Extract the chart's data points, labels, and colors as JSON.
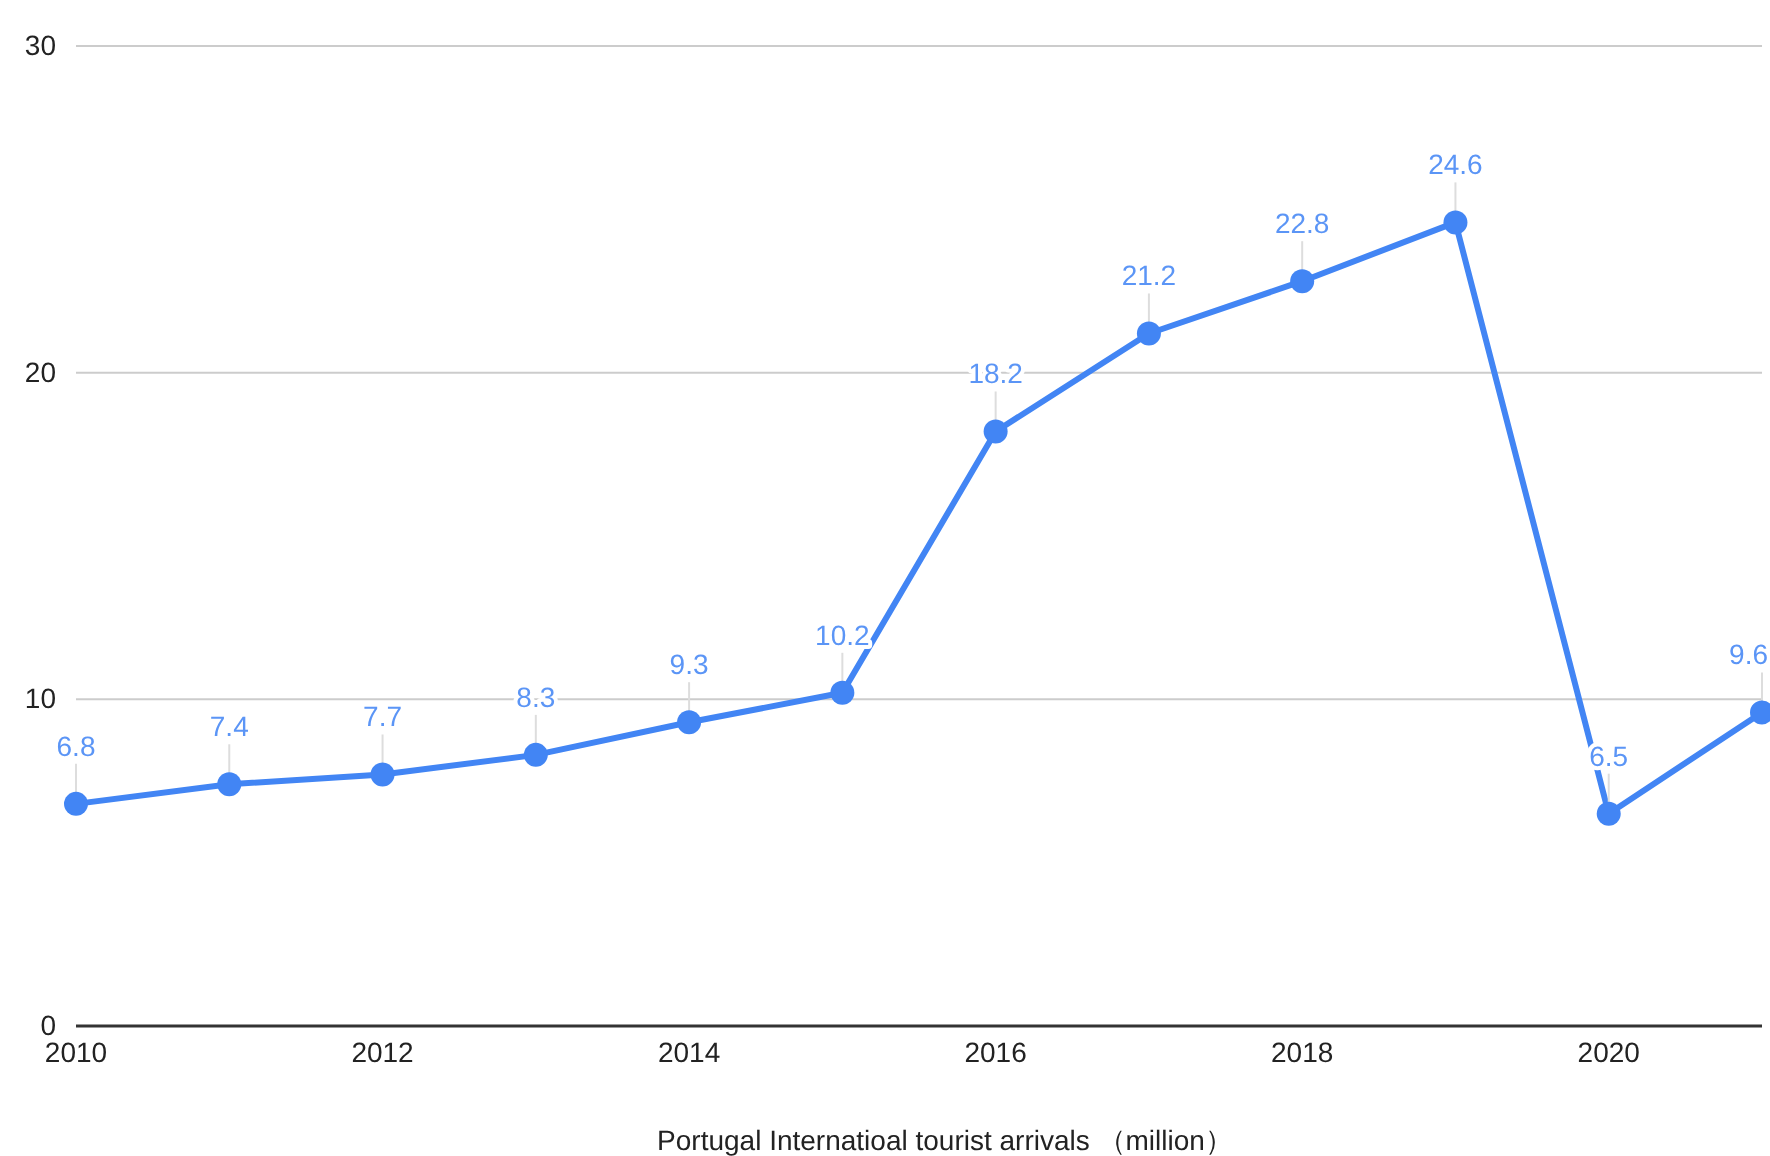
{
  "chart_data": {
    "type": "line",
    "xlabel": "Portugal Internatioal tourist arrivals （million）",
    "x": [
      2010,
      2011,
      2012,
      2013,
      2014,
      2015,
      2016,
      2017,
      2018,
      2019,
      2020,
      2021
    ],
    "series": [
      {
        "color": "#4285f4",
        "values": [
          6.8,
          7.4,
          7.7,
          8.3,
          9.3,
          10.2,
          18.2,
          21.2,
          22.8,
          24.6,
          6.5,
          9.6
        ]
      }
    ],
    "xlim": [
      2010,
      2021
    ],
    "xticks": [
      2010,
      2012,
      2014,
      2016,
      2018,
      2020
    ],
    "ylim": [
      0,
      30
    ],
    "yticks": [
      0,
      10,
      20,
      30
    ],
    "grid": "y",
    "marker": "circle",
    "line_style": "solid",
    "data_labels": true
  }
}
